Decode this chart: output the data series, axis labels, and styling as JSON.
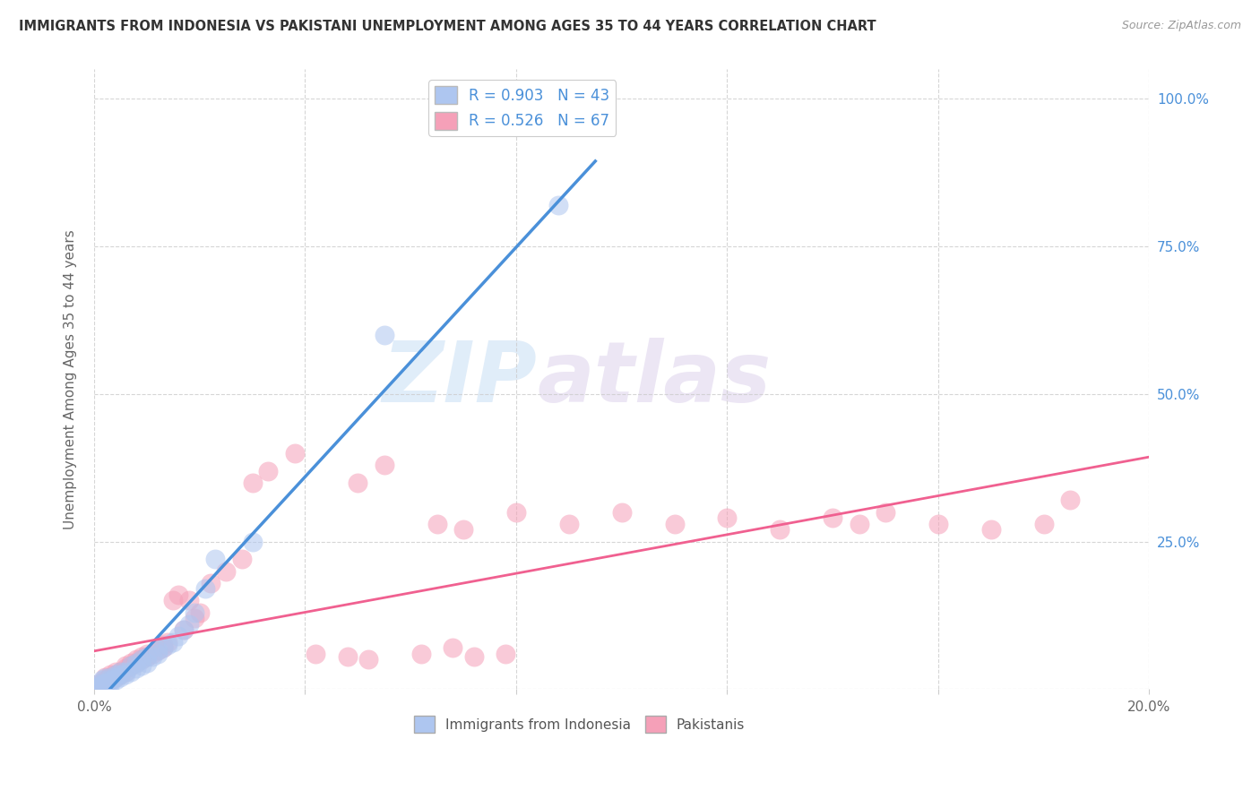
{
  "title": "IMMIGRANTS FROM INDONESIA VS PAKISTANI UNEMPLOYMENT AMONG AGES 35 TO 44 YEARS CORRELATION CHART",
  "source": "Source: ZipAtlas.com",
  "ylabel": "Unemployment Among Ages 35 to 44 years",
  "xlim": [
    0.0,
    0.2
  ],
  "ylim": [
    0.0,
    1.05
  ],
  "x_ticks": [
    0.0,
    0.04,
    0.08,
    0.12,
    0.16,
    0.2
  ],
  "x_tick_labels": [
    "0.0%",
    "",
    "",
    "",
    "",
    "20.0%"
  ],
  "y_ticks": [
    0.0,
    0.25,
    0.5,
    0.75,
    1.0
  ],
  "y_tick_labels": [
    "",
    "25.0%",
    "50.0%",
    "75.0%",
    "100.0%"
  ],
  "indonesia_R": 0.903,
  "indonesia_N": 43,
  "pakistan_R": 0.526,
  "pakistan_N": 67,
  "indonesia_color": "#aec6f0",
  "pakistan_color": "#f5a0b8",
  "indonesia_line_color": "#4a90d9",
  "pakistan_line_color": "#f06090",
  "background_color": "#ffffff",
  "watermark_zip": "ZIP",
  "watermark_atlas": "atlas",
  "indonesia_x": [
    0.0005,
    0.001,
    0.001,
    0.0015,
    0.0015,
    0.002,
    0.002,
    0.002,
    0.003,
    0.003,
    0.003,
    0.003,
    0.004,
    0.004,
    0.004,
    0.005,
    0.005,
    0.005,
    0.006,
    0.006,
    0.007,
    0.007,
    0.008,
    0.008,
    0.009,
    0.009,
    0.01,
    0.01,
    0.011,
    0.012,
    0.012,
    0.013,
    0.014,
    0.015,
    0.016,
    0.017,
    0.018,
    0.019,
    0.021,
    0.023,
    0.03,
    0.055,
    0.088
  ],
  "indonesia_y": [
    0.003,
    0.005,
    0.01,
    0.008,
    0.015,
    0.008,
    0.01,
    0.018,
    0.01,
    0.012,
    0.015,
    0.02,
    0.015,
    0.02,
    0.025,
    0.02,
    0.025,
    0.03,
    0.025,
    0.03,
    0.03,
    0.04,
    0.035,
    0.045,
    0.04,
    0.05,
    0.045,
    0.055,
    0.055,
    0.06,
    0.065,
    0.07,
    0.075,
    0.08,
    0.09,
    0.1,
    0.11,
    0.13,
    0.17,
    0.22,
    0.25,
    0.6,
    0.82
  ],
  "pakistan_x": [
    0.0005,
    0.001,
    0.001,
    0.0015,
    0.002,
    0.002,
    0.002,
    0.003,
    0.003,
    0.003,
    0.004,
    0.004,
    0.004,
    0.005,
    0.005,
    0.006,
    0.006,
    0.006,
    0.007,
    0.007,
    0.008,
    0.008,
    0.009,
    0.009,
    0.01,
    0.01,
    0.011,
    0.012,
    0.013,
    0.013,
    0.014,
    0.015,
    0.016,
    0.017,
    0.018,
    0.019,
    0.02,
    0.022,
    0.025,
    0.028,
    0.03,
    0.033,
    0.038,
    0.05,
    0.055,
    0.065,
    0.07,
    0.08,
    0.09,
    0.1,
    0.11,
    0.12,
    0.13,
    0.15,
    0.16,
    0.17,
    0.18,
    0.14,
    0.145,
    0.185,
    0.062,
    0.068,
    0.072,
    0.078,
    0.042,
    0.048,
    0.052
  ],
  "pakistan_y": [
    0.003,
    0.005,
    0.01,
    0.008,
    0.01,
    0.015,
    0.02,
    0.015,
    0.02,
    0.025,
    0.02,
    0.025,
    0.03,
    0.025,
    0.03,
    0.03,
    0.035,
    0.04,
    0.04,
    0.045,
    0.045,
    0.05,
    0.05,
    0.055,
    0.055,
    0.06,
    0.06,
    0.065,
    0.07,
    0.075,
    0.08,
    0.15,
    0.16,
    0.1,
    0.15,
    0.12,
    0.13,
    0.18,
    0.2,
    0.22,
    0.35,
    0.37,
    0.4,
    0.35,
    0.38,
    0.28,
    0.27,
    0.3,
    0.28,
    0.3,
    0.28,
    0.29,
    0.27,
    0.3,
    0.28,
    0.27,
    0.28,
    0.29,
    0.28,
    0.32,
    0.06,
    0.07,
    0.055,
    0.06,
    0.06,
    0.055,
    0.05
  ]
}
